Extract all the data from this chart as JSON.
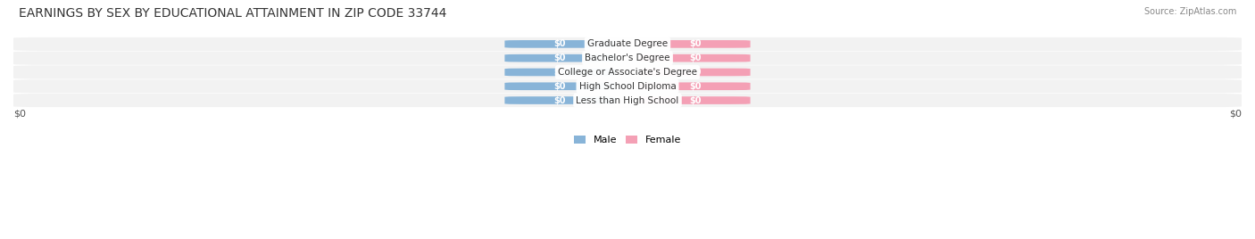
{
  "title": "EARNINGS BY SEX BY EDUCATIONAL ATTAINMENT IN ZIP CODE 33744",
  "source": "Source: ZipAtlas.com",
  "categories": [
    "Less than High School",
    "High School Diploma",
    "College or Associate's Degree",
    "Bachelor's Degree",
    "Graduate Degree"
  ],
  "male_values": [
    0,
    0,
    0,
    0,
    0
  ],
  "female_values": [
    0,
    0,
    0,
    0,
    0
  ],
  "male_color": "#88b4d8",
  "female_color": "#f4a0b5",
  "male_label": "Male",
  "female_label": "Female",
  "background_color": "#ffffff",
  "row_bg_color": "#f2f2f2",
  "title_fontsize": 10,
  "source_fontsize": 7,
  "bar_height": 0.55,
  "bar_width": 0.18,
  "xlim": [
    -1.0,
    1.0
  ],
  "xlabel_left": "$0",
  "xlabel_right": "$0",
  "value_format": "$0"
}
